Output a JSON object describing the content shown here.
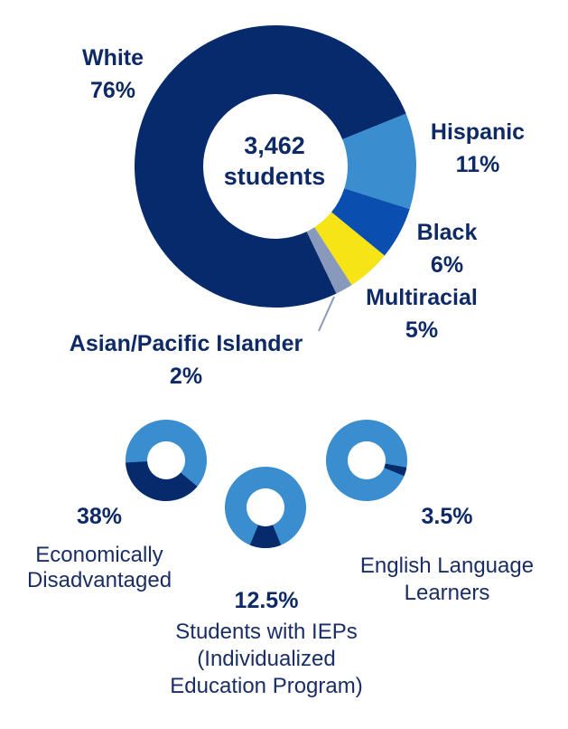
{
  "colors": {
    "navy": "#062a6b",
    "light_blue": "#3a8ed0",
    "blue": "#0a4fb0",
    "yellow": "#f7e416",
    "gray_blue": "#8899bb",
    "text": "#0d2a66"
  },
  "chart_data": [
    {
      "type": "pie",
      "variant": "donut",
      "center_value": "3,462",
      "center_unit": "students",
      "slices": [
        {
          "name": "White",
          "value": 76,
          "label": "76%",
          "color": "#062a6b"
        },
        {
          "name": "Hispanic",
          "value": 11,
          "label": "11%",
          "color": "#3a8ed0"
        },
        {
          "name": "Black",
          "value": 6,
          "label": "6%",
          "color": "#0a4fb0"
        },
        {
          "name": "Multiracial",
          "value": 5,
          "label": "5%",
          "color": "#f7e416"
        },
        {
          "name": "Asian/Pacific Islander",
          "value": 2,
          "label": "2%",
          "color": "#8899bb"
        }
      ]
    },
    {
      "type": "pie",
      "variant": "donut",
      "name": "Economically Disadvantaged",
      "label_lines": [
        "Economically",
        "Disadvantaged"
      ],
      "value": 38,
      "value_label": "38%"
    },
    {
      "type": "pie",
      "variant": "donut",
      "name": "Students with IEPs (Individualized Education Program)",
      "label_lines": [
        "Students with IEPs",
        "(Individualized",
        "Education Program)"
      ],
      "value": 12.5,
      "value_label": "12.5%"
    },
    {
      "type": "pie",
      "variant": "donut",
      "name": "English Language Learners",
      "label_lines": [
        "English Language",
        "Learners"
      ],
      "value": 3.5,
      "value_label": "3.5%"
    }
  ]
}
